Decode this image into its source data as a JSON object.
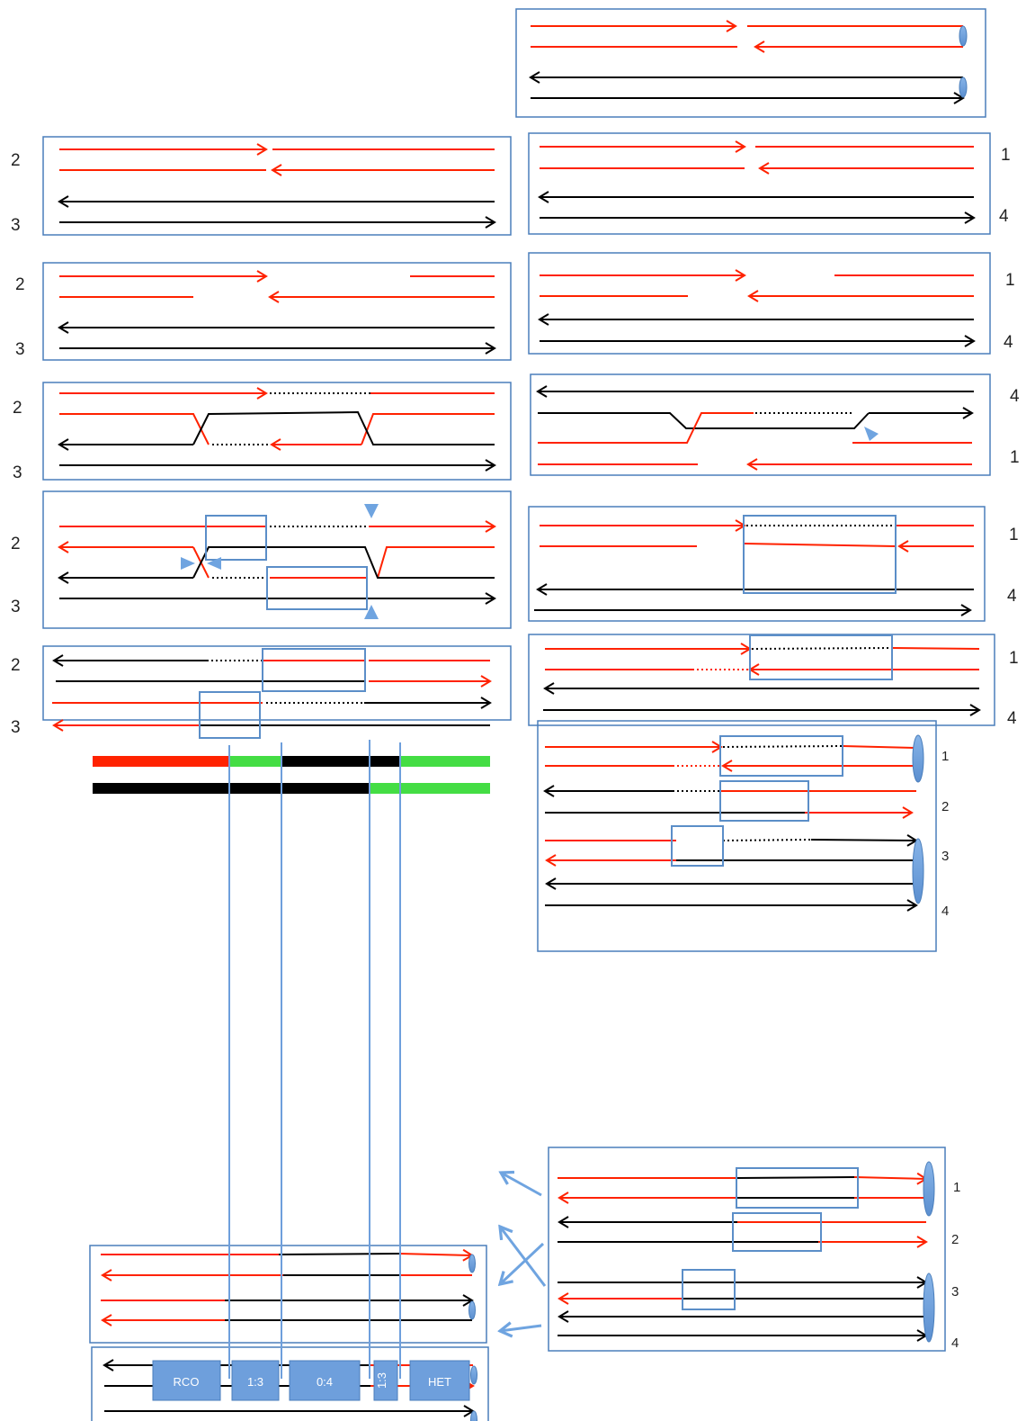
{
  "colors": {
    "parent_a": "#ff2200",
    "parent_b": "#000000",
    "panel_border": "#4a7ebb",
    "box": "#5b8ec8",
    "marker": "#6fa4e0",
    "conversion": "#44dd44",
    "button": "#6e9fdc"
  },
  "labels": {
    "one": "1",
    "two": "2",
    "three": "3",
    "four": "4"
  },
  "buttons": {
    "rco": "RCO",
    "ratio_1_3": "1:3",
    "ratio_0_4": "0:4",
    "ratio_1_3_vertical": "1:3",
    "het": "HET"
  }
}
